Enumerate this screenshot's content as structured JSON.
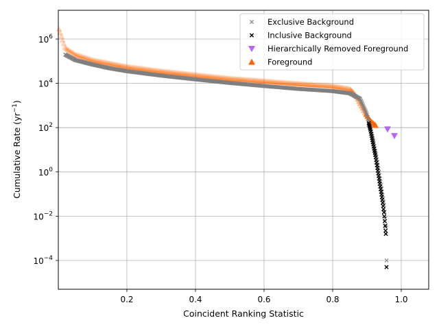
{
  "chart_data": {
    "type": "scatter",
    "xlabel": "Coincident Ranking Statistic",
    "ylabel_main": "Cumulative Rate (yr",
    "ylabel_sup": "−1",
    "ylabel_end": ")",
    "xlim": [
      0.0,
      1.08
    ],
    "ylim_log10": [
      -5.3,
      7.3
    ],
    "y_scale": "log",
    "grid": true,
    "legend_position": "top-right",
    "x_ticks": [
      {
        "value": 0.2,
        "label": "0.2"
      },
      {
        "value": 0.4,
        "label": "0.4"
      },
      {
        "value": 0.6,
        "label": "0.6"
      },
      {
        "value": 0.8,
        "label": "0.8"
      },
      {
        "value": 1.0,
        "label": "1.0"
      }
    ],
    "y_ticks": [
      {
        "exp": 6,
        "base": "10",
        "sup": "6"
      },
      {
        "exp": 4,
        "base": "10",
        "sup": "4"
      },
      {
        "exp": 2,
        "base": "10",
        "sup": "2"
      },
      {
        "exp": 0,
        "base": "10",
        "sup": "0"
      },
      {
        "exp": -2,
        "base": "10",
        "sup": "−2"
      },
      {
        "exp": -4,
        "base": "10",
        "sup": "−4"
      }
    ],
    "series": [
      {
        "name": "Exclusive Background",
        "marker": "x",
        "color": "#808080",
        "points": [
          [
            0.02,
            5.3
          ],
          [
            0.05,
            5.05
          ],
          [
            0.1,
            4.85
          ],
          [
            0.15,
            4.68
          ],
          [
            0.2,
            4.55
          ],
          [
            0.3,
            4.35
          ],
          [
            0.4,
            4.18
          ],
          [
            0.5,
            4.02
          ],
          [
            0.6,
            3.88
          ],
          [
            0.7,
            3.75
          ],
          [
            0.8,
            3.65
          ],
          [
            0.85,
            3.55
          ],
          [
            0.88,
            3.3
          ],
          [
            0.9,
            2.6
          ],
          [
            0.91,
            2.0
          ],
          [
            0.92,
            1.3
          ],
          [
            0.93,
            0.5
          ],
          [
            0.94,
            -0.5
          ],
          [
            0.95,
            -1.5
          ],
          [
            0.955,
            -2.5
          ],
          [
            0.957,
            -4.0
          ]
        ]
      },
      {
        "name": "Inclusive Background",
        "marker": "x",
        "color": "#000000",
        "points": [
          [
            0.905,
            2.2
          ],
          [
            0.91,
            1.9
          ],
          [
            0.915,
            1.5
          ],
          [
            0.92,
            1.1
          ],
          [
            0.925,
            0.7
          ],
          [
            0.93,
            0.2
          ],
          [
            0.935,
            -0.3
          ],
          [
            0.94,
            -0.8
          ],
          [
            0.945,
            -1.3
          ],
          [
            0.95,
            -1.9
          ],
          [
            0.955,
            -2.8
          ],
          [
            0.957,
            -4.3
          ]
        ]
      },
      {
        "name": "Hierarchically Removed Foreground",
        "marker": "triangle-down",
        "color": "#b266ff",
        "points": [
          [
            0.96,
            1.93
          ],
          [
            0.98,
            1.63
          ]
        ]
      },
      {
        "name": "Foreground",
        "marker": "triangle-up",
        "color": "#ff6600",
        "points": [
          [
            0.002,
            6.45
          ],
          [
            0.02,
            5.6
          ],
          [
            0.05,
            5.3
          ],
          [
            0.1,
            5.05
          ],
          [
            0.2,
            4.75
          ],
          [
            0.3,
            4.55
          ],
          [
            0.4,
            4.38
          ],
          [
            0.5,
            4.22
          ],
          [
            0.6,
            4.1
          ],
          [
            0.7,
            3.98
          ],
          [
            0.8,
            3.88
          ],
          [
            0.85,
            3.75
          ],
          [
            0.87,
            3.4
          ],
          [
            0.89,
            2.8
          ],
          [
            0.91,
            2.3
          ],
          [
            0.925,
            2.1
          ]
        ]
      }
    ]
  }
}
